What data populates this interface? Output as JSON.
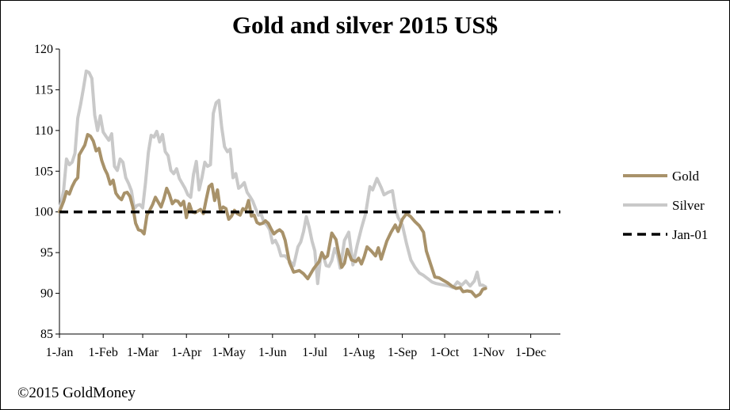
{
  "chart_data": {
    "type": "line",
    "title": "Gold and silver 2015 US$",
    "xlabel": "",
    "ylabel": "",
    "ylim": [
      85,
      120
    ],
    "yticks": [
      85,
      90,
      95,
      100,
      105,
      110,
      115,
      120
    ],
    "x_range_days": [
      0,
      355
    ],
    "xticks": [
      {
        "label": "1-Jan",
        "day": 0
      },
      {
        "label": "1-Feb",
        "day": 31
      },
      {
        "label": "1-Mar",
        "day": 59
      },
      {
        "label": "1-Apr",
        "day": 90
      },
      {
        "label": "1-May",
        "day": 120
      },
      {
        "label": "1-Jun",
        "day": 151
      },
      {
        "label": "1-Jul",
        "day": 181
      },
      {
        "label": "1-Aug",
        "day": 212
      },
      {
        "label": "1-Sep",
        "day": 243
      },
      {
        "label": "1-Oct",
        "day": 273
      },
      {
        "label": "1-Nov",
        "day": 304
      },
      {
        "label": "1-Dec",
        "day": 334
      }
    ],
    "grid": false,
    "legend_position": "right",
    "series": [
      {
        "name": "Gold",
        "color": "#A8926A",
        "style": "solid",
        "points": [
          [
            0,
            100
          ],
          [
            3,
            101.3
          ],
          [
            5,
            102.5
          ],
          [
            7,
            102.2
          ],
          [
            9,
            103.1
          ],
          [
            11,
            103.8
          ],
          [
            13,
            104.2
          ],
          [
            14,
            107
          ],
          [
            16,
            107.6
          ],
          [
            18,
            108.2
          ],
          [
            20,
            109.5
          ],
          [
            22,
            109.3
          ],
          [
            24,
            108.7
          ],
          [
            26,
            107.5
          ],
          [
            28,
            107.8
          ],
          [
            30,
            106.3
          ],
          [
            32,
            105.3
          ],
          [
            34,
            104.6
          ],
          [
            36,
            103.4
          ],
          [
            38,
            103.9
          ],
          [
            40,
            102.3
          ],
          [
            42,
            101.8
          ],
          [
            44,
            101.5
          ],
          [
            46,
            102.3
          ],
          [
            48,
            102.4
          ],
          [
            50,
            101.9
          ],
          [
            52,
            100.6
          ],
          [
            54,
            98.6
          ],
          [
            56,
            97.8
          ],
          [
            58,
            97.7
          ],
          [
            60,
            97.3
          ],
          [
            62,
            99.6
          ],
          [
            64,
            100.2
          ],
          [
            66,
            100.9
          ],
          [
            68,
            101.8
          ],
          [
            70,
            101.2
          ],
          [
            72,
            100.6
          ],
          [
            74,
            101.6
          ],
          [
            76,
            102.9
          ],
          [
            78,
            102.1
          ],
          [
            80,
            101.0
          ],
          [
            82,
            101.4
          ],
          [
            84,
            101.3
          ],
          [
            86,
            100.8
          ],
          [
            88,
            101.3
          ],
          [
            90,
            99.3
          ],
          [
            92,
            101.0
          ],
          [
            94,
            100.0
          ],
          [
            96,
            99.9
          ],
          [
            98,
            100.1
          ],
          [
            100,
            100.3
          ],
          [
            102,
            99.8
          ],
          [
            104,
            101.5
          ],
          [
            106,
            103.1
          ],
          [
            108,
            103.4
          ],
          [
            110,
            101.4
          ],
          [
            112,
            102.7
          ],
          [
            114,
            100.2
          ],
          [
            116,
            100.6
          ],
          [
            118,
            100.4
          ],
          [
            120,
            99.1
          ],
          [
            122,
            99.5
          ],
          [
            124,
            100.2
          ],
          [
            126,
            99.8
          ],
          [
            128,
            99.6
          ],
          [
            130,
            100.4
          ],
          [
            132,
            100.2
          ],
          [
            134,
            101.4
          ],
          [
            136,
            99.5
          ],
          [
            138,
            99.6
          ],
          [
            140,
            98.7
          ],
          [
            142,
            98.5
          ],
          [
            144,
            98.6
          ],
          [
            146,
            98.9
          ],
          [
            148,
            98.6
          ],
          [
            150,
            97.9
          ],
          [
            152,
            97.3
          ],
          [
            154,
            97.6
          ],
          [
            156,
            97.8
          ],
          [
            158,
            97.5
          ],
          [
            160,
            96.5
          ],
          [
            163,
            93.8
          ],
          [
            166,
            92.6
          ],
          [
            170,
            92.8
          ],
          [
            173,
            92.4
          ],
          [
            176,
            91.8
          ],
          [
            180,
            93.0
          ],
          [
            184,
            93.9
          ],
          [
            186,
            95.0
          ],
          [
            188,
            94.3
          ],
          [
            190,
            94.6
          ],
          [
            193,
            97.4
          ],
          [
            196,
            96.6
          ],
          [
            198,
            94.8
          ],
          [
            200,
            93.2
          ],
          [
            202,
            93.7
          ],
          [
            204,
            95.4
          ],
          [
            207,
            94.1
          ],
          [
            210,
            93.9
          ],
          [
            212,
            94.3
          ],
          [
            214,
            93.6
          ],
          [
            216,
            94.5
          ],
          [
            218,
            95.7
          ],
          [
            221,
            95.2
          ],
          [
            224,
            94.6
          ],
          [
            226,
            95.6
          ],
          [
            228,
            94.2
          ],
          [
            232,
            96.4
          ],
          [
            235,
            97.5
          ],
          [
            238,
            98.4
          ],
          [
            240,
            97.6
          ],
          [
            243,
            99.1
          ],
          [
            246,
            99.8
          ],
          [
            249,
            99.4
          ],
          [
            252,
            98.8
          ],
          [
            255,
            98.3
          ],
          [
            258,
            97.5
          ],
          [
            260,
            95.2
          ],
          [
            263,
            93.6
          ],
          [
            266,
            92.0
          ],
          [
            269,
            91.9
          ],
          [
            272,
            91.6
          ],
          [
            275,
            91.3
          ],
          [
            278,
            90.9
          ],
          [
            281,
            90.6
          ],
          [
            284,
            90.7
          ],
          [
            286,
            90.2
          ],
          [
            289,
            90.3
          ],
          [
            292,
            90.2
          ],
          [
            295,
            89.6
          ],
          [
            298,
            89.9
          ],
          [
            300,
            90.5
          ],
          [
            302,
            90.6
          ]
        ]
      },
      {
        "name": "Silver",
        "color": "#C9C9C9",
        "style": "solid",
        "points": [
          [
            0,
            100
          ],
          [
            3,
            102.7
          ],
          [
            5,
            106.5
          ],
          [
            7,
            105.8
          ],
          [
            9,
            106.1
          ],
          [
            11,
            107.2
          ],
          [
            13,
            111.5
          ],
          [
            15,
            113.2
          ],
          [
            17,
            115.2
          ],
          [
            19,
            117.3
          ],
          [
            21,
            117.1
          ],
          [
            23,
            116.4
          ],
          [
            25,
            111.9
          ],
          [
            27,
            110.0
          ],
          [
            29,
            111.8
          ],
          [
            31,
            109.8
          ],
          [
            33,
            109.3
          ],
          [
            35,
            108.8
          ],
          [
            37,
            109.6
          ],
          [
            39,
            105.6
          ],
          [
            41,
            105.1
          ],
          [
            43,
            106.5
          ],
          [
            45,
            106.1
          ],
          [
            47,
            104.2
          ],
          [
            49,
            103.5
          ],
          [
            51,
            102.6
          ],
          [
            53,
            100.4
          ],
          [
            55,
            100.8
          ],
          [
            57,
            100.9
          ],
          [
            59,
            100.5
          ],
          [
            61,
            103.6
          ],
          [
            63,
            107.3
          ],
          [
            65,
            109.4
          ],
          [
            67,
            109.2
          ],
          [
            69,
            109.9
          ],
          [
            71,
            108.6
          ],
          [
            73,
            109.5
          ],
          [
            75,
            107.4
          ],
          [
            77,
            106.9
          ],
          [
            79,
            105.1
          ],
          [
            81,
            104.7
          ],
          [
            83,
            105.3
          ],
          [
            85,
            104.1
          ],
          [
            87,
            103.5
          ],
          [
            89,
            102.9
          ],
          [
            91,
            102.1
          ],
          [
            93,
            101.8
          ],
          [
            95,
            104.6
          ],
          [
            97,
            106.2
          ],
          [
            99,
            102.7
          ],
          [
            101,
            104.2
          ],
          [
            103,
            106.1
          ],
          [
            105,
            105.6
          ],
          [
            107,
            105.8
          ],
          [
            109,
            112.1
          ],
          [
            111,
            113.4
          ],
          [
            113,
            113.7
          ],
          [
            115,
            110.4
          ],
          [
            117,
            108.0
          ],
          [
            119,
            107.4
          ],
          [
            121,
            107.7
          ],
          [
            123,
            104.2
          ],
          [
            125,
            104.7
          ],
          [
            127,
            102.9
          ],
          [
            129,
            103.2
          ],
          [
            131,
            103.6
          ],
          [
            133,
            102.4
          ],
          [
            135,
            101.9
          ],
          [
            137,
            101.3
          ],
          [
            139,
            100.4
          ],
          [
            141,
            99.6
          ],
          [
            143,
            99.7
          ],
          [
            145,
            98.7
          ],
          [
            147,
            98.4
          ],
          [
            149,
            97.8
          ],
          [
            151,
            96.2
          ],
          [
            153,
            96.5
          ],
          [
            155,
            95.8
          ],
          [
            157,
            94.6
          ],
          [
            160,
            94.6
          ],
          [
            163,
            94.0
          ],
          [
            166,
            93.4
          ],
          [
            169,
            95.7
          ],
          [
            171,
            96.3
          ],
          [
            173,
            97.6
          ],
          [
            175,
            99.4
          ],
          [
            177,
            98.1
          ],
          [
            179,
            96.4
          ],
          [
            181,
            95.2
          ],
          [
            183,
            91.2
          ],
          [
            185,
            94.4
          ],
          [
            187,
            94.6
          ],
          [
            189,
            93.4
          ],
          [
            191,
            93.3
          ],
          [
            193,
            94.0
          ],
          [
            195,
            95.5
          ],
          [
            197,
            94.8
          ],
          [
            199,
            93.1
          ],
          [
            202,
            96.5
          ],
          [
            205,
            97.5
          ],
          [
            208,
            93.5
          ],
          [
            211,
            95.9
          ],
          [
            214,
            98.0
          ],
          [
            217,
            99.8
          ],
          [
            220,
            103.1
          ],
          [
            222,
            102.7
          ],
          [
            225,
            104.1
          ],
          [
            228,
            103.0
          ],
          [
            230,
            102.1
          ],
          [
            233,
            102.4
          ],
          [
            236,
            102.6
          ],
          [
            238,
            100.4
          ],
          [
            240,
            99.3
          ],
          [
            243,
            98.4
          ],
          [
            246,
            96.1
          ],
          [
            249,
            94.1
          ],
          [
            252,
            93.2
          ],
          [
            255,
            92.5
          ],
          [
            258,
            92.2
          ],
          [
            261,
            91.8
          ],
          [
            264,
            91.4
          ],
          [
            267,
            91.2
          ],
          [
            270,
            91.1
          ],
          [
            273,
            91.0
          ],
          [
            276,
            90.9
          ],
          [
            279,
            90.7
          ],
          [
            282,
            91.4
          ],
          [
            285,
            91.0
          ],
          [
            288,
            91.5
          ],
          [
            291,
            90.9
          ],
          [
            294,
            91.5
          ],
          [
            296,
            92.6
          ],
          [
            298,
            91.0
          ],
          [
            300,
            91.0
          ],
          [
            302,
            90.8
          ]
        ]
      },
      {
        "name": "Jan-01",
        "color": "#000000",
        "style": "dashed",
        "points": [
          [
            0,
            100
          ],
          [
            355,
            100
          ]
        ]
      }
    ]
  },
  "footer": {
    "copyright": "©2015 GoldMoney"
  }
}
